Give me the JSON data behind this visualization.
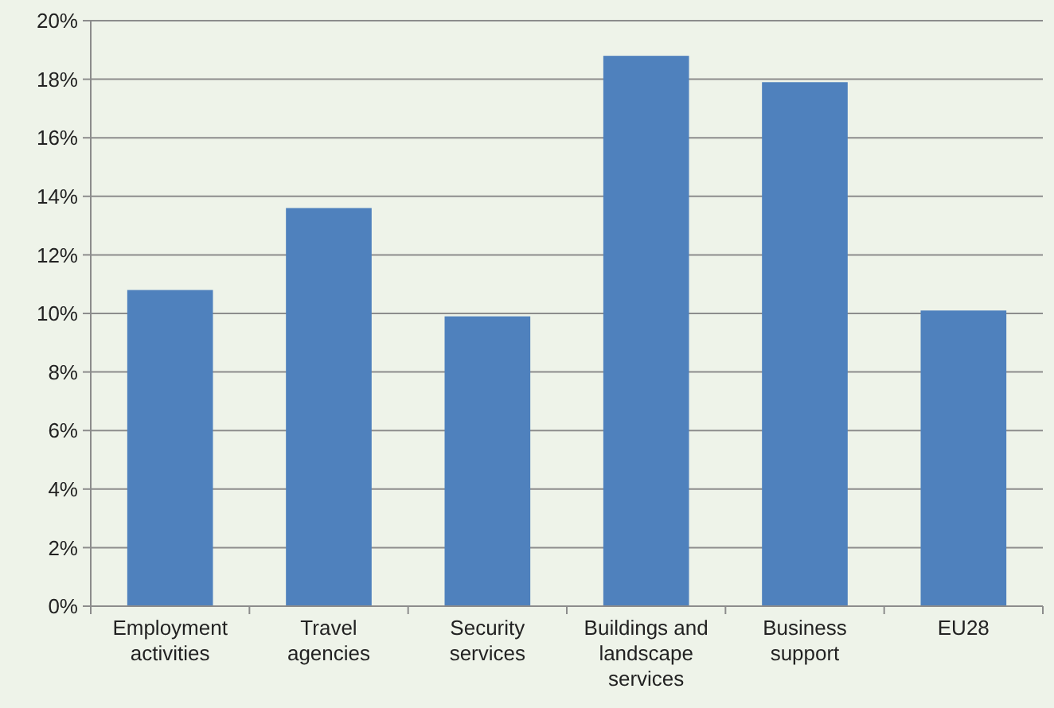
{
  "chart_data": {
    "type": "bar",
    "categories": [
      "Employment activities",
      "Travel agencies",
      "Security services",
      "Buildings and landscape services",
      "Business support",
      "EU28"
    ],
    "values": [
      10.8,
      13.6,
      9.9,
      18.8,
      17.9,
      10.1
    ],
    "color": "#4f81bd",
    "ylim": [
      0,
      20
    ],
    "yticks": [
      {
        "value": 0,
        "label": "0%"
      },
      {
        "value": 2,
        "label": "2%"
      },
      {
        "value": 4,
        "label": "4%"
      },
      {
        "value": 6,
        "label": "6%"
      },
      {
        "value": 8,
        "label": "8%"
      },
      {
        "value": 10,
        "label": "10%"
      },
      {
        "value": 12,
        "label": "12%"
      },
      {
        "value": 14,
        "label": "14%"
      },
      {
        "value": 16,
        "label": "16%"
      },
      {
        "value": 18,
        "label": "18%"
      },
      {
        "value": 20,
        "label": "20%"
      }
    ],
    "grid": "y"
  }
}
